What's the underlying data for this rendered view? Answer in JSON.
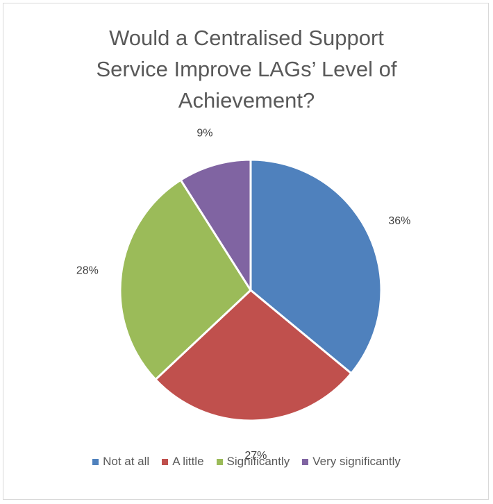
{
  "chart_data": {
    "type": "pie",
    "title_lines": [
      "Would a Centralised Support",
      "Service Improve LAGs’ Level of",
      "Achievement?"
    ],
    "categories": [
      "Not at all",
      "A little",
      "Significantly",
      "Very significantly"
    ],
    "values": [
      36,
      27,
      28,
      9
    ],
    "data_labels": [
      "36%",
      "27%",
      "28%",
      "9%"
    ],
    "colors": [
      "#4f81bd",
      "#c0504d",
      "#9bbb59",
      "#8064a2"
    ],
    "legend_position": "bottom"
  }
}
